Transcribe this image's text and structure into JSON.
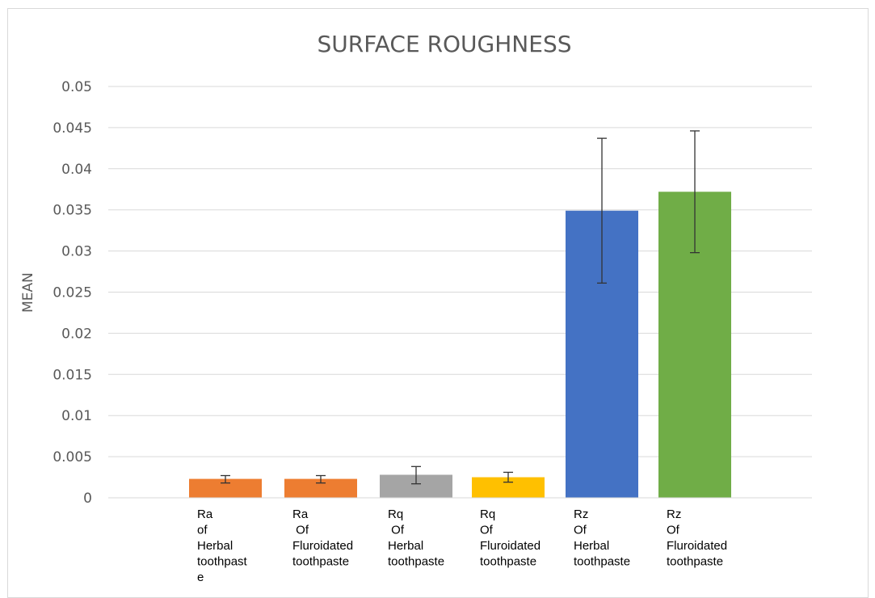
{
  "chart_data": {
    "type": "bar",
    "title": "SURFACE ROUGHNESS",
    "xlabel": "",
    "ylabel": "MEAN",
    "ylim": [
      0,
      0.05
    ],
    "yticks": [
      "0",
      "0.005",
      "0.01",
      "0.015",
      "0.02",
      "0.025",
      "0.03",
      "0.035",
      "0.04",
      "0.045",
      "0.05"
    ],
    "grid": true,
    "legend": "none",
    "categories": [
      [
        "Ra",
        "of",
        "Herbal",
        "toothpast",
        "e"
      ],
      [
        "Ra",
        " Of",
        "Fluroidated",
        "toothpaste"
      ],
      [
        "Rq",
        " Of",
        "Herbal",
        "toothpaste"
      ],
      [
        "Rq",
        "Of",
        "Fluroidated",
        "toothpaste"
      ],
      [
        "Rz",
        "Of",
        "Herbal",
        "toothpaste"
      ],
      [
        "Rz",
        "Of",
        "Fluroidated",
        "toothpaste"
      ]
    ],
    "values": [
      0.0023,
      0.0023,
      0.0028,
      0.0025,
      0.0349,
      0.0372
    ],
    "error_bars": [
      [
        0.0018,
        0.0027
      ],
      [
        0.0018,
        0.0027
      ],
      [
        0.0017,
        0.0038
      ],
      [
        0.0019,
        0.0031
      ],
      [
        0.0261,
        0.0437
      ],
      [
        0.0298,
        0.0446
      ]
    ],
    "colors": [
      "#ED7D31",
      "#ED7D31",
      "#A5A5A5",
      "#FFC000",
      "#4472C4",
      "#70AD47"
    ]
  }
}
